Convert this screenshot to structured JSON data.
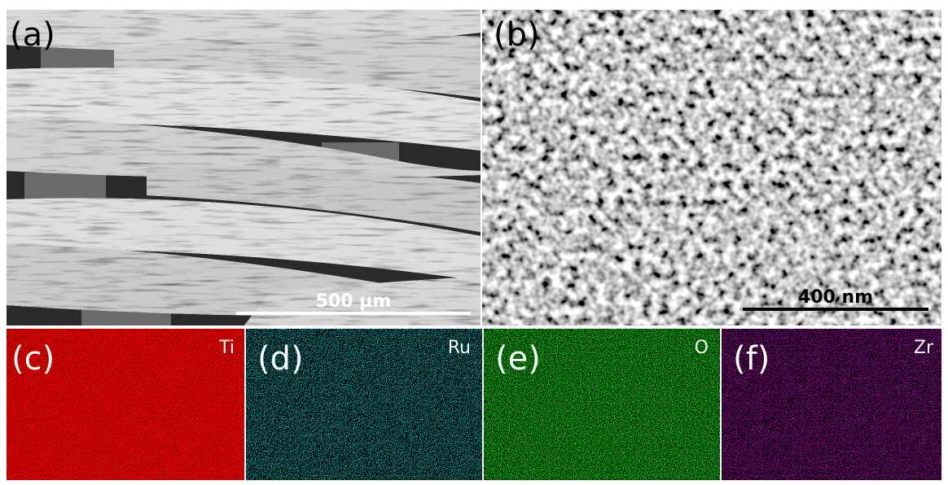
{
  "panels": [
    {
      "label": "(a)",
      "scale_bar": "500 µm"
    },
    {
      "label": "(b)",
      "scale_bar": "400 nm"
    },
    {
      "label": "(c)",
      "element": "Ti"
    },
    {
      "label": "(d)",
      "element": "Ru"
    },
    {
      "label": "(e)",
      "element": "O"
    },
    {
      "label": "(f)",
      "element": "Zr"
    }
  ]
}
